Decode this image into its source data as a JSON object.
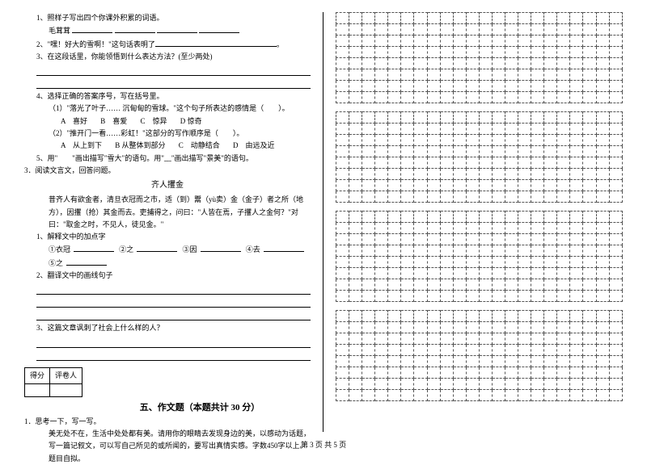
{
  "left": {
    "q1": "1、照样子写出四个你课外积累的词语。",
    "q1_example": "毛茸茸",
    "q2_prefix": "2、\"嘿！好大的雪啊！\"这句话表明了",
    "q2_suffix": "。",
    "q3": "3、在这段话里，你能领悟到什么表达方法？(至少两处)",
    "q4": "4、选择正确的答案序号，写在括号里。",
    "q4_1": "（1）\"落光了叶子…… 沉甸甸的雪球。\"这个句子所表达的感情是（　　）。",
    "q4_1_opts": {
      "a": "A　喜好",
      "b": "B　喜爱",
      "c": "C　惊异",
      "d": "D 惊奇"
    },
    "q4_2": "（2）\"推开门一看……彩虹！\"这部分的写作顺序是（　　）。",
    "q4_2_opts": {
      "a": "A　从上到下",
      "b": "B 从整体到部分",
      "c": "C　动静结合",
      "d": "D　由远及近"
    },
    "q5": "5、用\"　　\"画出描写\"雪大\"的语句。用\"﹏\"画出描写\"景美\"的语句。",
    "q3num": "3．阅读文言文，回答问题。",
    "wenyan_title": "齐人攫金",
    "wenyan_p1": "昔齐人有欲金者，清旦衣冠而之市，适（到）鬻（yù卖）金（金子）者之所（地方），因攫（抢）其金而去。吏捕得之，问曰：\"人皆在焉，子攫人之金何？\"对曰：\"取金之时，不见人，徒见金。\"",
    "wenyan_q1": "1、解释文中的加点字",
    "wenyan_labels": {
      "a": "①衣冠",
      "b": "②之",
      "c": "③因",
      "d": "④去",
      "e": "⑤之"
    },
    "wenyan_q2": "2、翻译文中的画线句子",
    "wenyan_q3": "3、这篇文章讽刺了社会上什么样的人？",
    "score_labels": {
      "a": "得分",
      "b": "评卷人"
    },
    "section5": "五、作文题（本题共计 30 分）",
    "essay_q": "1．思考一下，写一写。",
    "essay_body": "美无处不在，生活中处处都有美。请用你的眼睛去发现身边的美，以感动为话题，写一篇记叙文，可以写自己所见的或所闻的，要写出真情实感。字数450字以上。题目自拟。"
  },
  "footer": "第 3 页 共 5 页",
  "grids": {
    "blocks": 4,
    "rows_per_block": 8,
    "cols": 22
  }
}
